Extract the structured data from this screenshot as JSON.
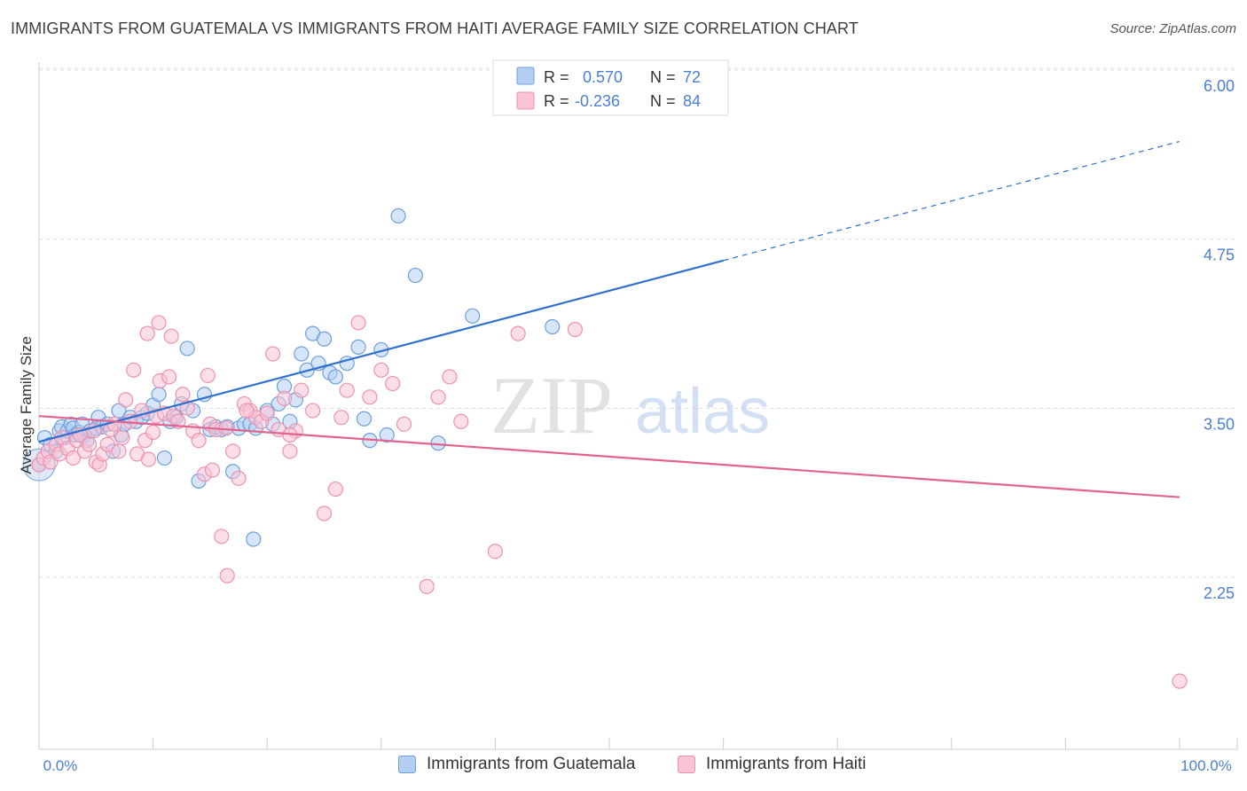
{
  "title": "IMMIGRANTS FROM GUATEMALA VS IMMIGRANTS FROM HAITI AVERAGE FAMILY SIZE CORRELATION CHART",
  "source": "Source: ZipAtlas.com",
  "watermark": {
    "zip": "ZIP",
    "atlas": "atlas"
  },
  "colors": {
    "guatemala_fill": "#b5cff2",
    "guatemala_stroke": "#6e9fdc",
    "guatemala_line": "#2f6fcf",
    "haiti_fill": "#f8c3d3",
    "haiti_stroke": "#ec92b0",
    "haiti_line": "#e2638e",
    "axis_label": "#4a7fd4"
  },
  "legend_top": [
    {
      "r_label": "R =",
      "r_value": "0.570",
      "n_label": "N =",
      "n_value": "72"
    },
    {
      "r_label": "R =",
      "r_value": "-0.236",
      "n_label": "N =",
      "n_value": "84"
    }
  ],
  "legend_bottom": [
    {
      "label": "Immigrants from Guatemala"
    },
    {
      "label": "Immigrants from Haiti"
    }
  ],
  "chart_data": {
    "type": "scatter",
    "title": "IMMIGRANTS FROM GUATEMALA VS IMMIGRANTS FROM HAITI AVERAGE FAMILY SIZE CORRELATION CHART",
    "xlabel": "",
    "ylabel": "Average Family Size",
    "xlim": [
      0,
      100
    ],
    "ylim": [
      1.25,
      6.2
    ],
    "x_tick_labels": [
      "0.0%",
      "100.0%"
    ],
    "y_ticks": [
      2.25,
      3.5,
      4.75,
      6.0
    ],
    "y_tick_labels": [
      "2.25",
      "3.50",
      "4.75",
      "6.00"
    ],
    "grid": "horizontal dashed",
    "legend_position": "top-center",
    "series": [
      {
        "name": "Immigrants from Guatemala",
        "r": 0.57,
        "n": 72,
        "trend": {
          "x_start": 0,
          "y_start": 3.37,
          "x_solid_end": 60,
          "y_solid_end": 4.71,
          "x_end": 100,
          "y_end": 5.59
        },
        "points": [
          [
            0,
            3.2
          ],
          [
            0.5,
            3.4
          ],
          [
            1,
            3.35
          ],
          [
            1.5,
            3.3
          ],
          [
            1.8,
            3.45
          ],
          [
            2,
            3.48
          ],
          [
            2.2,
            3.4
          ],
          [
            2.5,
            3.45
          ],
          [
            2.8,
            3.5
          ],
          [
            3,
            3.47
          ],
          [
            3.2,
            3.42
          ],
          [
            3.5,
            3.44
          ],
          [
            3.8,
            3.5
          ],
          [
            4,
            3.42
          ],
          [
            4.2,
            3.38
          ],
          [
            4.5,
            3.45
          ],
          [
            5,
            3.47
          ],
          [
            5.2,
            3.55
          ],
          [
            5.5,
            3.48
          ],
          [
            6,
            3.5
          ],
          [
            6.5,
            3.3
          ],
          [
            7,
            3.6
          ],
          [
            7.2,
            3.42
          ],
          [
            7.5,
            3.5
          ],
          [
            8,
            3.55
          ],
          [
            8.5,
            3.52
          ],
          [
            9,
            3.55
          ],
          [
            9.5,
            3.58
          ],
          [
            10,
            3.64
          ],
          [
            10.5,
            3.72
          ],
          [
            11,
            3.25
          ],
          [
            11.5,
            3.52
          ],
          [
            12,
            3.55
          ],
          [
            12.5,
            3.65
          ],
          [
            13,
            4.06
          ],
          [
            13.5,
            3.6
          ],
          [
            14,
            3.08
          ],
          [
            14.5,
            3.72
          ],
          [
            15,
            3.46
          ],
          [
            15.5,
            3.48
          ],
          [
            16,
            3.46
          ],
          [
            16.5,
            3.48
          ],
          [
            17,
            3.15
          ],
          [
            17.5,
            3.47
          ],
          [
            18,
            3.5
          ],
          [
            18.5,
            3.5
          ],
          [
            18.8,
            2.65
          ],
          [
            19,
            3.47
          ],
          [
            20,
            3.6
          ],
          [
            20.5,
            3.5
          ],
          [
            21,
            3.65
          ],
          [
            21.5,
            3.78
          ],
          [
            22,
            3.52
          ],
          [
            22.5,
            3.68
          ],
          [
            23,
            4.02
          ],
          [
            23.5,
            3.9
          ],
          [
            24,
            4.17
          ],
          [
            24.5,
            3.95
          ],
          [
            25,
            4.13
          ],
          [
            25.5,
            3.88
          ],
          [
            26,
            3.85
          ],
          [
            27,
            3.95
          ],
          [
            28,
            4.07
          ],
          [
            28.5,
            3.54
          ],
          [
            29,
            3.38
          ],
          [
            30,
            4.05
          ],
          [
            30.5,
            3.42
          ],
          [
            31.5,
            5.04
          ],
          [
            33,
            4.6
          ],
          [
            35,
            3.36
          ],
          [
            38,
            4.3
          ],
          [
            45,
            4.22
          ]
        ]
      },
      {
        "name": "Immigrants from Haiti",
        "r": -0.236,
        "n": 84,
        "trend": {
          "x_start": 0,
          "y_start": 3.56,
          "x_end": 100,
          "y_end": 2.96
        },
        "points": [
          [
            0,
            3.2
          ],
          [
            0.4,
            3.25
          ],
          [
            0.8,
            3.3
          ],
          [
            1,
            3.22
          ],
          [
            1.5,
            3.35
          ],
          [
            1.8,
            3.28
          ],
          [
            2,
            3.4
          ],
          [
            2.5,
            3.32
          ],
          [
            3,
            3.25
          ],
          [
            3.3,
            3.38
          ],
          [
            3.6,
            3.42
          ],
          [
            4,
            3.3
          ],
          [
            4.4,
            3.35
          ],
          [
            4.8,
            3.45
          ],
          [
            5,
            3.22
          ],
          [
            5.3,
            3.2
          ],
          [
            5.6,
            3.28
          ],
          [
            6,
            3.35
          ],
          [
            6.3,
            3.46
          ],
          [
            6.6,
            3.5
          ],
          [
            7,
            3.3
          ],
          [
            7.3,
            3.4
          ],
          [
            7.6,
            3.68
          ],
          [
            8,
            3.52
          ],
          [
            8.3,
            3.9
          ],
          [
            8.6,
            3.28
          ],
          [
            9,
            3.6
          ],
          [
            9.3,
            3.38
          ],
          [
            9.6,
            3.24
          ],
          [
            10,
            3.44
          ],
          [
            10.3,
            3.56
          ],
          [
            10.6,
            3.82
          ],
          [
            11,
            3.58
          ],
          [
            11.4,
            3.85
          ],
          [
            11.8,
            3.56
          ],
          [
            12.2,
            3.52
          ],
          [
            12.6,
            3.72
          ],
          [
            13,
            3.62
          ],
          [
            13.5,
            3.45
          ],
          [
            14,
            3.38
          ],
          [
            14.5,
            3.13
          ],
          [
            15,
            3.5
          ],
          [
            15.5,
            3.46
          ],
          [
            16,
            2.67
          ],
          [
            16.5,
            2.38
          ],
          [
            17,
            3.3
          ],
          [
            17.5,
            3.1
          ],
          [
            18,
            3.65
          ],
          [
            18.5,
            3.6
          ],
          [
            19,
            3.55
          ],
          [
            19.5,
            3.52
          ],
          [
            20,
            3.58
          ],
          [
            20.5,
            4.02
          ],
          [
            21,
            3.46
          ],
          [
            21.5,
            3.69
          ],
          [
            22,
            3.3
          ],
          [
            22.5,
            3.45
          ],
          [
            23,
            3.75
          ],
          [
            24,
            3.6
          ],
          [
            25,
            2.84
          ],
          [
            26,
            3.02
          ],
          [
            27,
            3.75
          ],
          [
            28,
            4.25
          ],
          [
            29,
            3.7
          ],
          [
            30,
            3.9
          ],
          [
            32,
            3.5
          ],
          [
            34,
            2.3
          ],
          [
            35,
            3.7
          ],
          [
            36,
            3.85
          ],
          [
            37,
            3.52
          ],
          [
            40,
            2.56
          ],
          [
            42,
            4.17
          ],
          [
            47,
            4.2
          ],
          [
            9.5,
            4.17
          ],
          [
            10.5,
            4.25
          ],
          [
            11.6,
            4.15
          ],
          [
            14.8,
            3.86
          ],
          [
            15.2,
            3.16
          ],
          [
            16.4,
            3.47
          ],
          [
            18.2,
            3.6
          ],
          [
            26.5,
            3.55
          ],
          [
            31,
            3.8
          ],
          [
            22,
            3.42
          ],
          [
            100,
            1.6
          ]
        ]
      }
    ]
  }
}
